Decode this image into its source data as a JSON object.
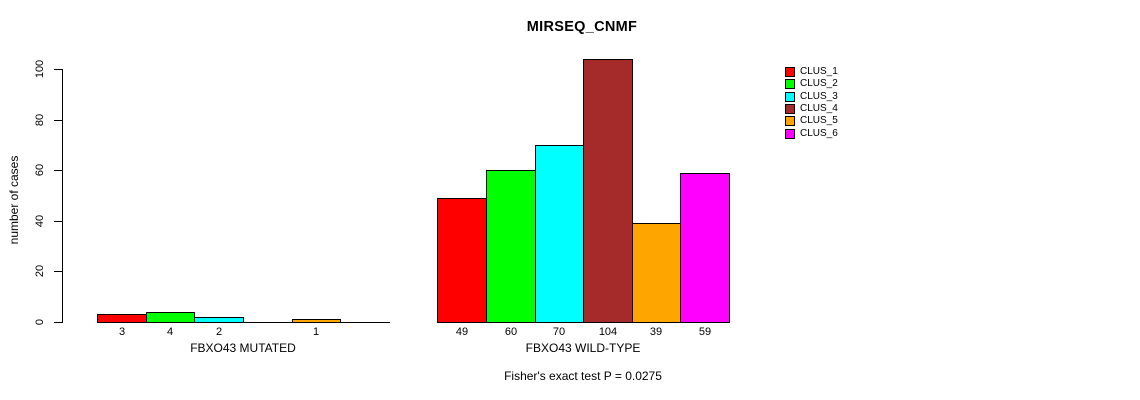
{
  "title": "MIRSEQ_CNMF",
  "chart_data": {
    "type": "bar",
    "title": "MIRSEQ_CNMF",
    "xlabel": "",
    "ylabel": "number of cases",
    "ylim": [
      0,
      100
    ],
    "yticks": [
      0,
      20,
      40,
      60,
      80,
      100
    ],
    "grid": false,
    "legend_position": "top-right",
    "categories": [
      "FBXO43 MUTATED",
      "FBXO43 WILD-TYPE"
    ],
    "series": [
      {
        "name": "CLUS_1",
        "color": "#FF0000",
        "values": [
          3,
          49
        ]
      },
      {
        "name": "CLUS_2",
        "color": "#00FF00",
        "values": [
          4,
          60
        ]
      },
      {
        "name": "CLUS_3",
        "color": "#00FFFF",
        "values": [
          2,
          70
        ]
      },
      {
        "name": "CLUS_4",
        "color": "#A52A2A",
        "values": [
          0,
          104
        ]
      },
      {
        "name": "CLUS_5",
        "color": "#FFA500",
        "values": [
          1,
          39
        ]
      },
      {
        "name": "CLUS_6",
        "color": "#FF00FF",
        "values": [
          0,
          59
        ]
      }
    ],
    "bar_value_labels": [
      [
        "3",
        "4",
        "2",
        "",
        "1",
        ""
      ],
      [
        "49",
        "60",
        "70",
        "104",
        "39",
        "59"
      ]
    ],
    "zero_bars_drawn_as_flat_lines": true,
    "annotation": "Fisher's exact test P = 0.0275"
  },
  "colors": {
    "background": "#FFFFFF",
    "axis": "#000000",
    "text": "#000000"
  }
}
